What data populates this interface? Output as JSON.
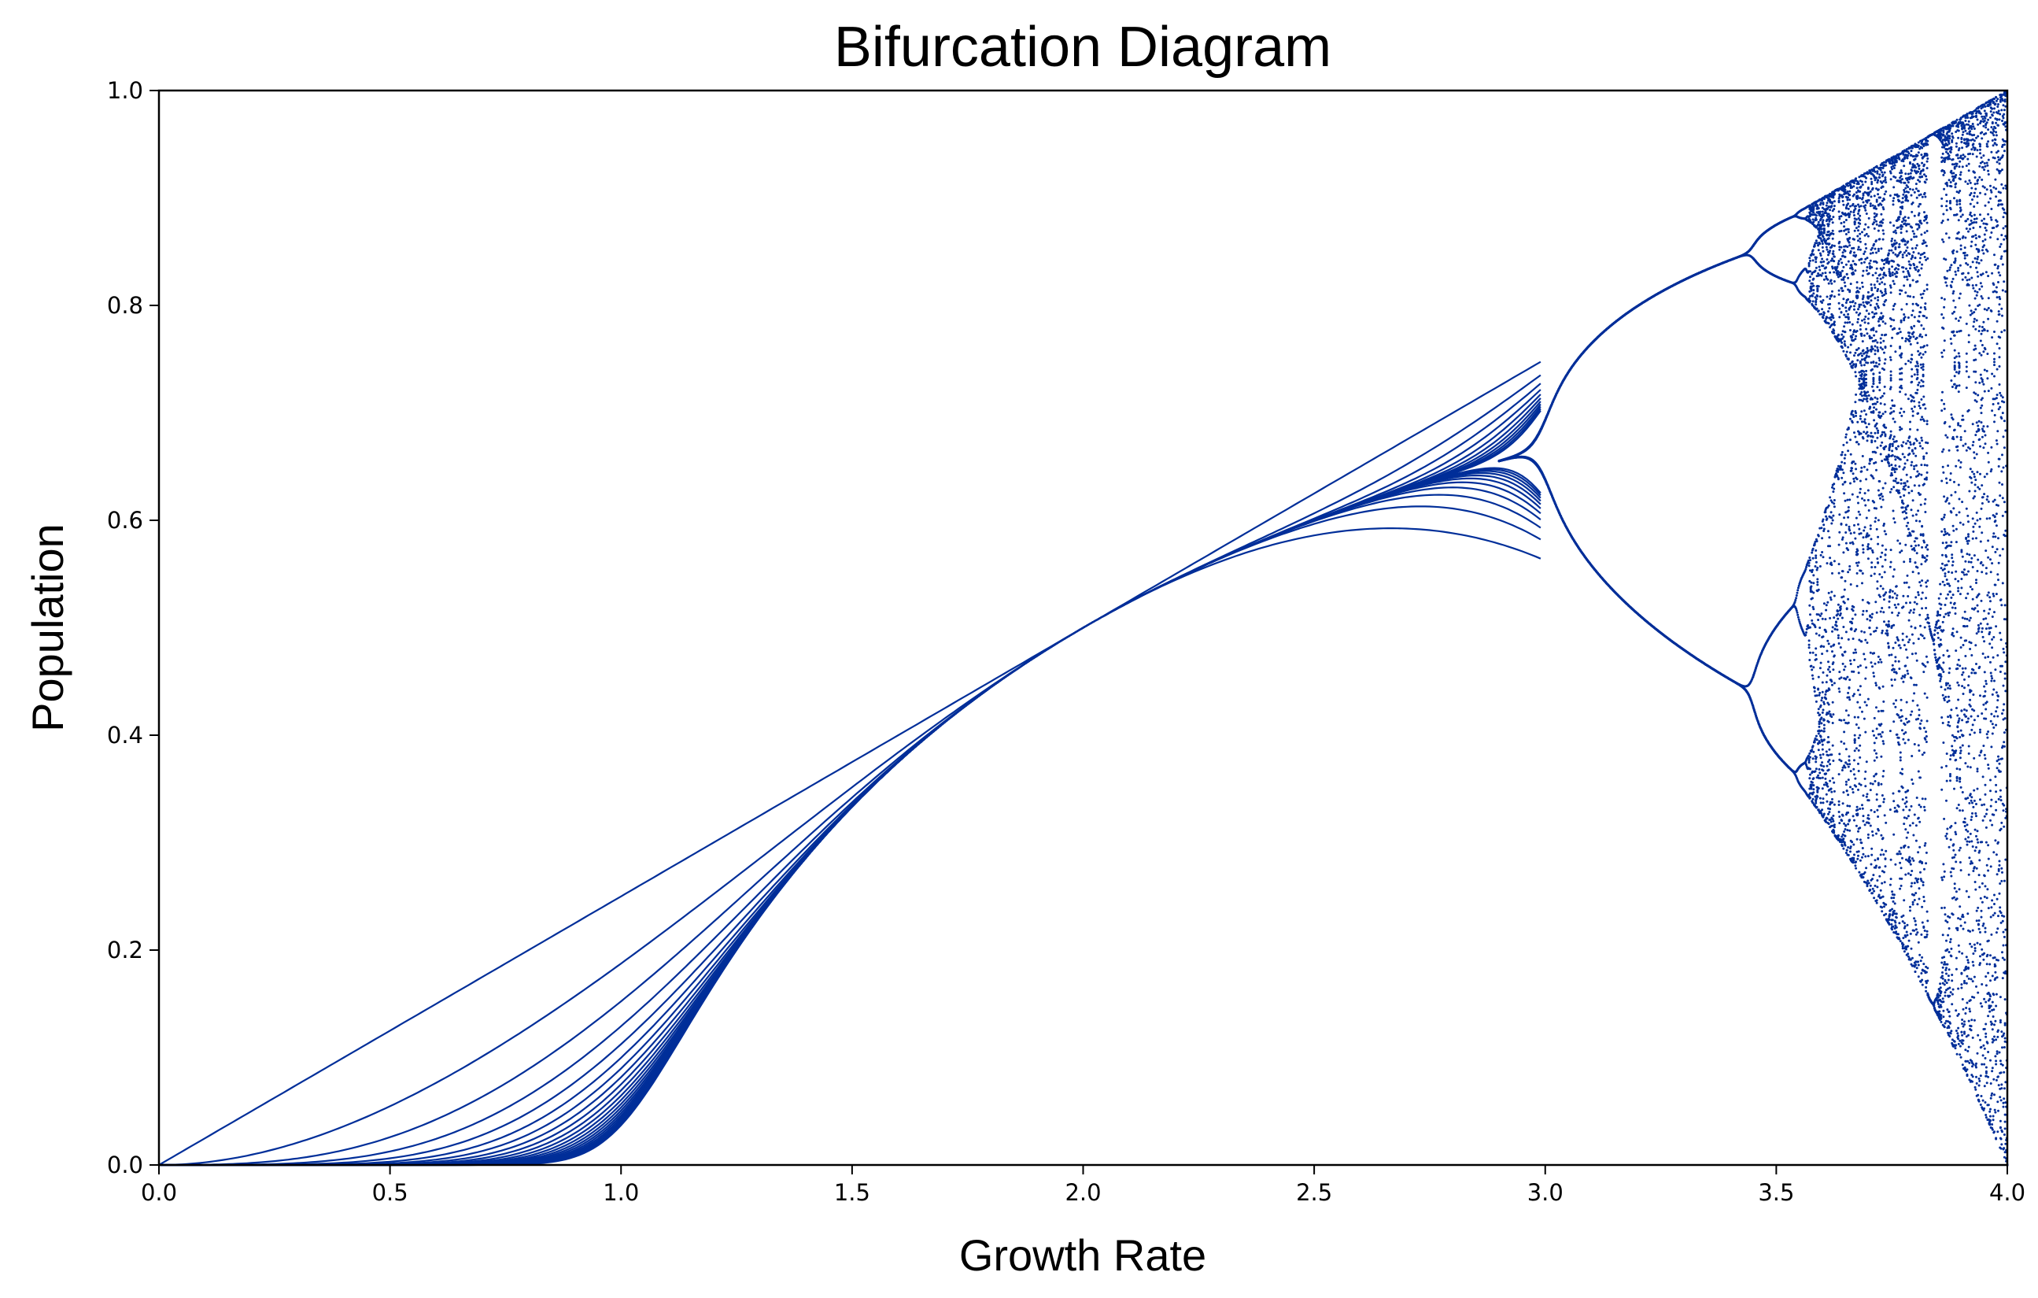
{
  "chart_data": {
    "type": "scatter",
    "title": "Bifurcation Diagram",
    "xlabel": "Growth Rate",
    "ylabel": "Population",
    "xlim": [
      0.0,
      4.0
    ],
    "ylim": [
      0.0,
      1.0
    ],
    "xticks": [
      "0.0",
      "0.5",
      "1.0",
      "1.5",
      "2.0",
      "2.5",
      "3.0",
      "3.5",
      "4.0"
    ],
    "yticks": [
      "0.0",
      "0.2",
      "0.4",
      "0.6",
      "0.8",
      "1.0"
    ],
    "grid": false,
    "legend": "none",
    "color": "#002e99",
    "series": [
      {
        "description_of_data": "logistic map x_{n+1} = r x_n (1 - x_n), iterates plotted vs growth rate r",
        "r_range": [
          0.0,
          4.0
        ],
        "points": [
          {
            "x": 0.0,
            "y": 0.0
          },
          {
            "x": 1.0,
            "y": 0.0
          },
          {
            "x": 1.5,
            "y": 0.333
          },
          {
            "x": 2.0,
            "y": 0.5
          },
          {
            "x": 2.5,
            "y": 0.6
          },
          {
            "x": 2.9,
            "y": 0.655
          },
          {
            "x": 3.2,
            "y": 0.799
          },
          {
            "x": 3.2,
            "y": 0.513
          },
          {
            "x": 3.5,
            "y": 0.875
          },
          {
            "x": 3.5,
            "y": 0.383
          },
          {
            "x": 3.5,
            "y": 0.827
          },
          {
            "x": 3.5,
            "y": 0.501
          },
          {
            "x": 3.83,
            "y": 0.957
          },
          {
            "x": 3.83,
            "y": 0.16
          },
          {
            "x": 3.83,
            "y": 0.514
          },
          {
            "x": 4.0,
            "y": 1.0
          },
          {
            "x": 4.0,
            "y": 0.0
          }
        ]
      }
    ]
  }
}
